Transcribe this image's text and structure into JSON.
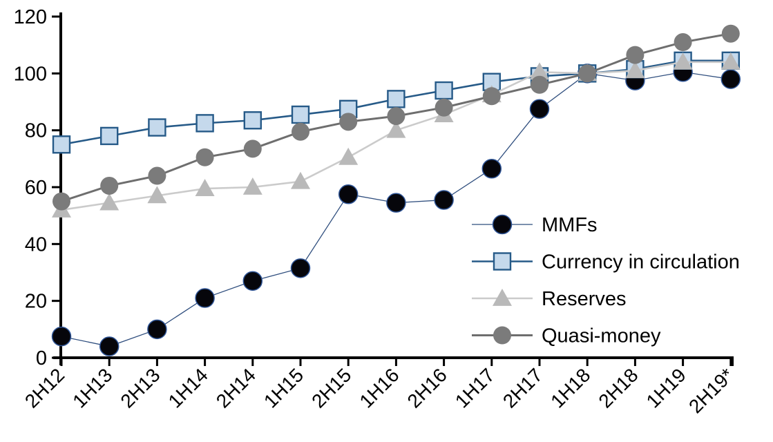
{
  "chart_data": {
    "type": "line",
    "title": "",
    "xlabel": "",
    "ylabel": "",
    "categories": [
      "2H12",
      "1H13",
      "2H13",
      "1H14",
      "2H14",
      "1H15",
      "2H15",
      "1H16",
      "2H16",
      "1H17",
      "2H17",
      "1H18",
      "2H18",
      "1H19",
      "2H19*"
    ],
    "series": [
      {
        "name": "MMFs",
        "marker": "circle",
        "values": [
          7.5,
          4,
          10,
          21,
          27,
          31.5,
          57.5,
          54.5,
          55.5,
          66.5,
          87.5,
          100,
          97.5,
          100.5,
          98
        ],
        "line_color": "#2F4E7E",
        "line_width": 1.3,
        "marker_fill": "#06060B",
        "marker_stroke": "#2F5597",
        "marker_stroke_width": 1.5,
        "marker_size": 13.5
      },
      {
        "name": "Currency in circulation",
        "marker": "square",
        "values": [
          75,
          78,
          81,
          82.5,
          83.5,
          85.5,
          87.5,
          91,
          94,
          97,
          99,
          100,
          101.5,
          104.5,
          104.5
        ],
        "line_color": "#265A88",
        "line_width": 2.6,
        "marker_fill": "#C5D9EC",
        "marker_stroke": "#265A88",
        "marker_stroke_width": 2.4,
        "marker_size": 12
      },
      {
        "name": "Reserves",
        "marker": "triangle",
        "values": [
          52,
          54.5,
          57,
          59.5,
          60,
          62,
          70.5,
          80,
          85.5,
          92.5,
          100.5,
          100,
          101,
          104,
          104
        ],
        "line_color": "#CBCBCB",
        "line_width": 2.6,
        "marker_fill": "#B9B9B9",
        "marker_stroke": "none",
        "marker_stroke_width": 0,
        "marker_size": 14
      },
      {
        "name": "Quasi-money",
        "marker": "circle",
        "values": [
          55,
          60.5,
          64,
          70.5,
          73.5,
          79.5,
          83,
          85,
          88,
          92,
          96,
          100,
          106.5,
          111,
          114
        ],
        "line_color": "#6E6E6E",
        "line_width": 3,
        "marker_fill": "#7B7B7B",
        "marker_stroke": "none",
        "marker_stroke_width": 0,
        "marker_size": 13
      }
    ],
    "ylim": [
      0,
      120
    ],
    "yticks": [
      0,
      20,
      40,
      60,
      80,
      100,
      120
    ],
    "grid": false,
    "legend_position": "middle-right",
    "axis_color": "#000000",
    "tick_label_color": "#000000"
  }
}
